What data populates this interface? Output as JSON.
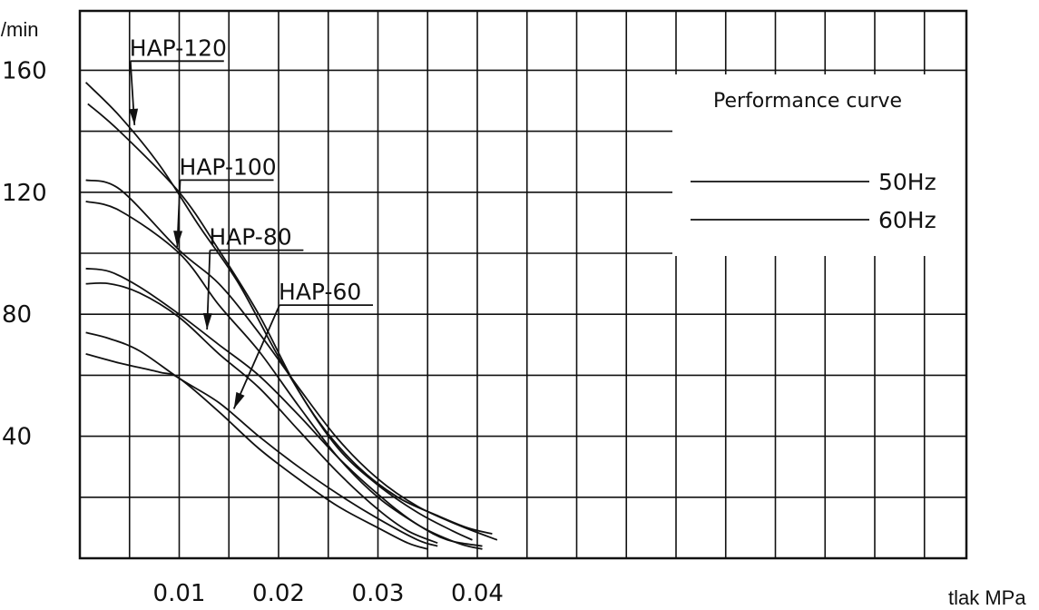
{
  "chart_data": {
    "type": "line",
    "title": "Performance curve",
    "xlabel": "tlak MPa",
    "ylabel": "l/min",
    "x_ticks": [
      "0.01",
      "0.02",
      "0.03",
      "0.04"
    ],
    "y_ticks": [
      "40",
      "80",
      "120",
      "160"
    ],
    "xlim": [
      0,
      0.043
    ],
    "ylim": [
      0,
      175
    ],
    "x_grid_step": 0.005,
    "y_grid_step": 20,
    "grid": true,
    "legend_position": "top-right",
    "legend": {
      "title": "Performance curve",
      "entries": [
        "50Hz",
        "60Hz"
      ]
    },
    "models": [
      {
        "label": "HAP-120",
        "arrow_from": [
          0.0145,
          163
        ],
        "arrow_to": [
          0.0055,
          142
        ]
      },
      {
        "label": "HAP-100",
        "arrow_from": [
          0.0195,
          124
        ],
        "arrow_to": [
          0.0098,
          102
        ]
      },
      {
        "label": "HAP-80",
        "arrow_from": [
          0.0225,
          101
        ],
        "arrow_to": [
          0.0128,
          75
        ]
      },
      {
        "label": "HAP-60",
        "arrow_from": [
          0.0295,
          83
        ],
        "arrow_to": [
          0.0155,
          49
        ]
      }
    ],
    "series": [
      {
        "model": "HAP-120",
        "points": [
          [
            0.0006,
            156
          ],
          [
            0.004,
            145
          ],
          [
            0.008,
            129
          ],
          [
            0.012,
            109
          ],
          [
            0.016,
            90
          ],
          [
            0.02,
            66
          ],
          [
            0.024,
            45
          ],
          [
            0.028,
            30
          ],
          [
            0.032,
            20
          ],
          [
            0.036,
            14
          ],
          [
            0.039,
            10
          ],
          [
            0.0415,
            8
          ]
        ]
      },
      {
        "model": "HAP-120",
        "points": [
          [
            0.0008,
            149
          ],
          [
            0.004,
            140
          ],
          [
            0.01,
            120
          ],
          [
            0.014,
            101
          ],
          [
            0.018,
            80
          ],
          [
            0.022,
            55
          ],
          [
            0.026,
            36
          ],
          [
            0.03,
            24
          ],
          [
            0.034,
            15
          ],
          [
            0.0375,
            9
          ],
          [
            0.0395,
            6
          ]
        ]
      },
      {
        "model": "HAP-100",
        "points": [
          [
            0.0006,
            124
          ],
          [
            0.004,
            121
          ],
          [
            0.01,
            101
          ],
          [
            0.014,
            90
          ],
          [
            0.018,
            74
          ],
          [
            0.022,
            56
          ],
          [
            0.026,
            39
          ],
          [
            0.03,
            26
          ],
          [
            0.034,
            17
          ],
          [
            0.038,
            11
          ],
          [
            0.042,
            6
          ]
        ]
      },
      {
        "model": "HAP-100",
        "points": [
          [
            0.0006,
            117
          ],
          [
            0.004,
            114
          ],
          [
            0.01,
            100
          ],
          [
            0.014,
            83
          ],
          [
            0.018,
            68
          ],
          [
            0.022,
            50
          ],
          [
            0.026,
            33
          ],
          [
            0.03,
            20
          ],
          [
            0.034,
            11
          ],
          [
            0.037,
            6
          ],
          [
            0.0405,
            4
          ]
        ]
      },
      {
        "model": "HAP-80",
        "points": [
          [
            0.0006,
            95
          ],
          [
            0.003,
            94
          ],
          [
            0.006,
            89
          ],
          [
            0.01,
            80
          ],
          [
            0.014,
            70
          ],
          [
            0.018,
            60
          ],
          [
            0.022,
            47
          ],
          [
            0.026,
            33
          ],
          [
            0.03,
            21
          ],
          [
            0.034,
            11
          ],
          [
            0.038,
            5
          ],
          [
            0.0405,
            3
          ]
        ]
      },
      {
        "model": "HAP-80",
        "points": [
          [
            0.0006,
            90
          ],
          [
            0.003,
            90
          ],
          [
            0.006,
            87
          ],
          [
            0.01,
            79
          ],
          [
            0.014,
            67
          ],
          [
            0.018,
            56
          ],
          [
            0.022,
            42
          ],
          [
            0.026,
            28
          ],
          [
            0.03,
            16
          ],
          [
            0.033,
            9
          ],
          [
            0.036,
            5
          ]
        ]
      },
      {
        "model": "HAP-60",
        "points": [
          [
            0.0006,
            74
          ],
          [
            0.003,
            72
          ],
          [
            0.006,
            68
          ],
          [
            0.01,
            59
          ],
          [
            0.014,
            51
          ],
          [
            0.018,
            40
          ],
          [
            0.022,
            30
          ],
          [
            0.026,
            21
          ],
          [
            0.03,
            13
          ],
          [
            0.034,
            6
          ],
          [
            0.036,
            4
          ]
        ]
      },
      {
        "model": "HAP-60",
        "points": [
          [
            0.0006,
            67
          ],
          [
            0.004,
            64
          ],
          [
            0.008,
            61
          ],
          [
            0.01,
            59
          ],
          [
            0.014,
            48
          ],
          [
            0.018,
            36
          ],
          [
            0.022,
            26
          ],
          [
            0.026,
            17
          ],
          [
            0.03,
            10
          ],
          [
            0.033,
            5
          ],
          [
            0.035,
            3
          ]
        ]
      }
    ]
  }
}
